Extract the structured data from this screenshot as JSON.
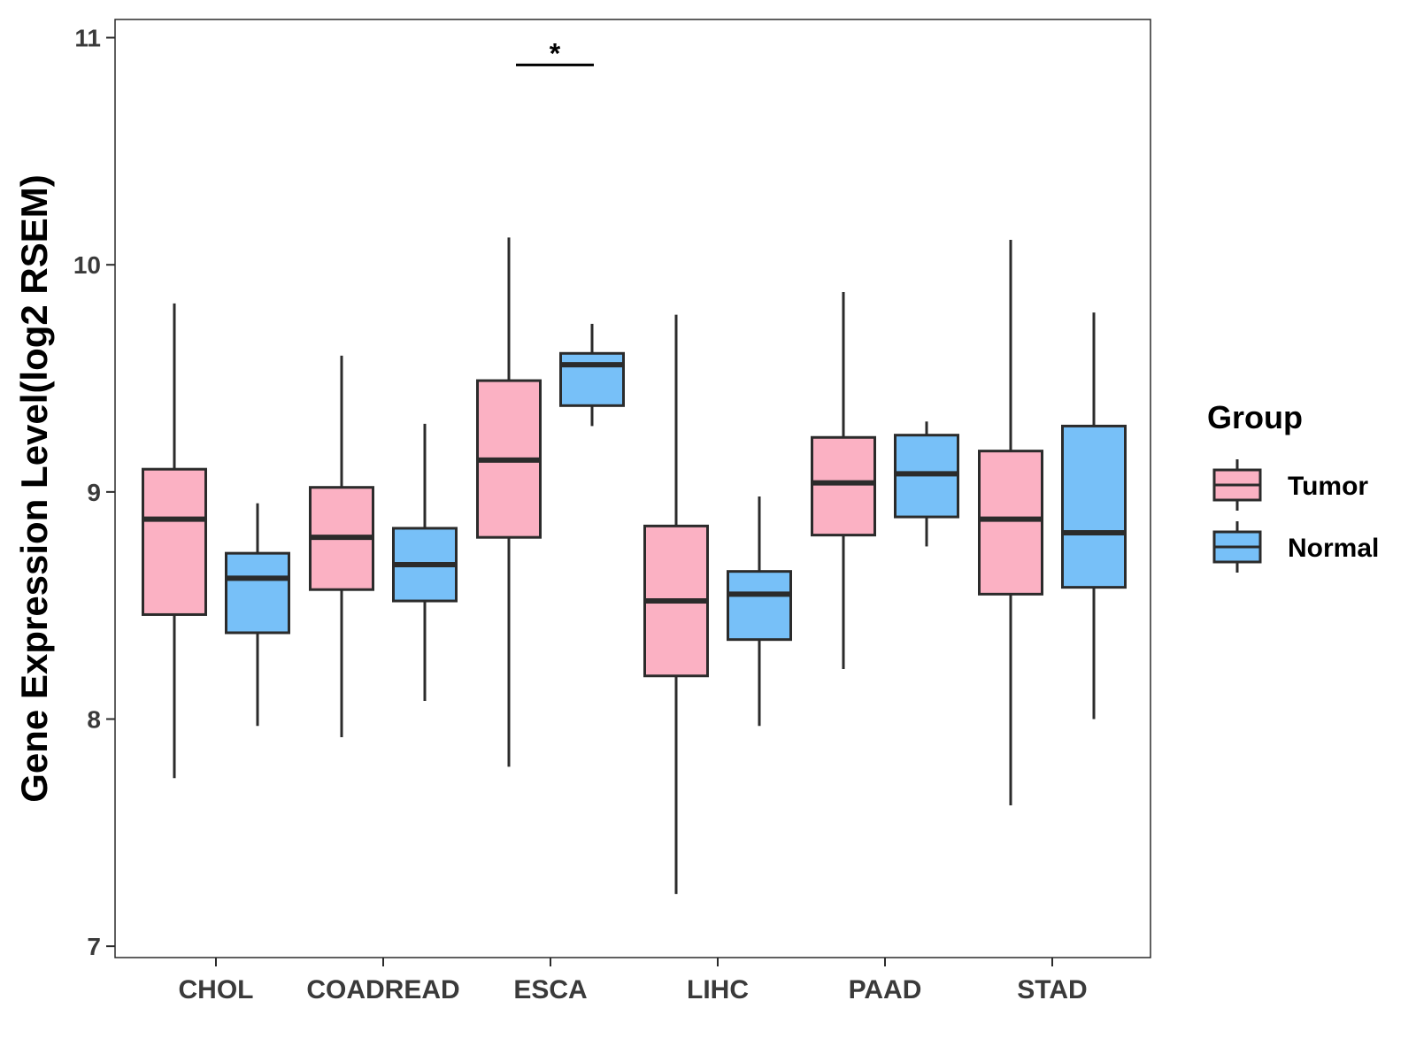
{
  "chart_data": {
    "type": "boxplot",
    "title": "",
    "xlabel": "",
    "ylabel": "Gene Expression Level(log2 RSEM)",
    "ylim": [
      6.95,
      11.08
    ],
    "yticks": [
      7,
      8,
      9,
      10,
      11
    ],
    "ytick_labels": [
      "7",
      "8",
      "9",
      "10",
      "11"
    ],
    "categories": [
      "CHOL",
      "COADREAD",
      "ESCA",
      "LIHC",
      "PAAD",
      "STAD"
    ],
    "grid": false,
    "legend": {
      "title": "Group",
      "position": "right",
      "entries": [
        "Tumor",
        "Normal"
      ]
    },
    "series": [
      {
        "name": "Tumor",
        "color": "#fbb1c3",
        "boxes": [
          {
            "category": "CHOL",
            "min": 7.74,
            "q1": 8.46,
            "median": 8.88,
            "q3": 9.1,
            "max": 9.83
          },
          {
            "category": "COADREAD",
            "min": 7.92,
            "q1": 8.57,
            "median": 8.8,
            "q3": 9.02,
            "max": 9.6
          },
          {
            "category": "ESCA",
            "min": 7.79,
            "q1": 8.8,
            "median": 9.14,
            "q3": 9.49,
            "max": 10.12
          },
          {
            "category": "LIHC",
            "min": 7.23,
            "q1": 8.19,
            "median": 8.52,
            "q3": 8.85,
            "max": 9.78
          },
          {
            "category": "PAAD",
            "min": 8.22,
            "q1": 8.81,
            "median": 9.04,
            "q3": 9.24,
            "max": 9.88
          },
          {
            "category": "STAD",
            "min": 7.62,
            "q1": 8.55,
            "median": 8.88,
            "q3": 9.18,
            "max": 10.11
          }
        ]
      },
      {
        "name": "Normal",
        "color": "#77c0f8",
        "boxes": [
          {
            "category": "CHOL",
            "min": 7.97,
            "q1": 8.38,
            "median": 8.62,
            "q3": 8.73,
            "max": 8.95
          },
          {
            "category": "COADREAD",
            "min": 8.08,
            "q1": 8.52,
            "median": 8.68,
            "q3": 8.84,
            "max": 9.3
          },
          {
            "category": "ESCA",
            "min": 9.29,
            "q1": 9.38,
            "median": 9.56,
            "q3": 9.61,
            "max": 9.74
          },
          {
            "category": "LIHC",
            "min": 7.97,
            "q1": 8.35,
            "median": 8.55,
            "q3": 8.65,
            "max": 8.98
          },
          {
            "category": "PAAD",
            "min": 8.76,
            "q1": 8.89,
            "median": 9.08,
            "q3": 9.25,
            "max": 9.31
          },
          {
            "category": "STAD",
            "min": 8.0,
            "q1": 8.58,
            "median": 8.82,
            "q3": 9.29,
            "max": 9.79
          }
        ]
      }
    ],
    "annotations": [
      {
        "category": "ESCA",
        "text": "*",
        "y": 10.88
      }
    ]
  },
  "colors": {
    "outline": "#2b2b2b",
    "panel_border": "#2b2b2b",
    "tick_text": "#3a3a3a"
  }
}
